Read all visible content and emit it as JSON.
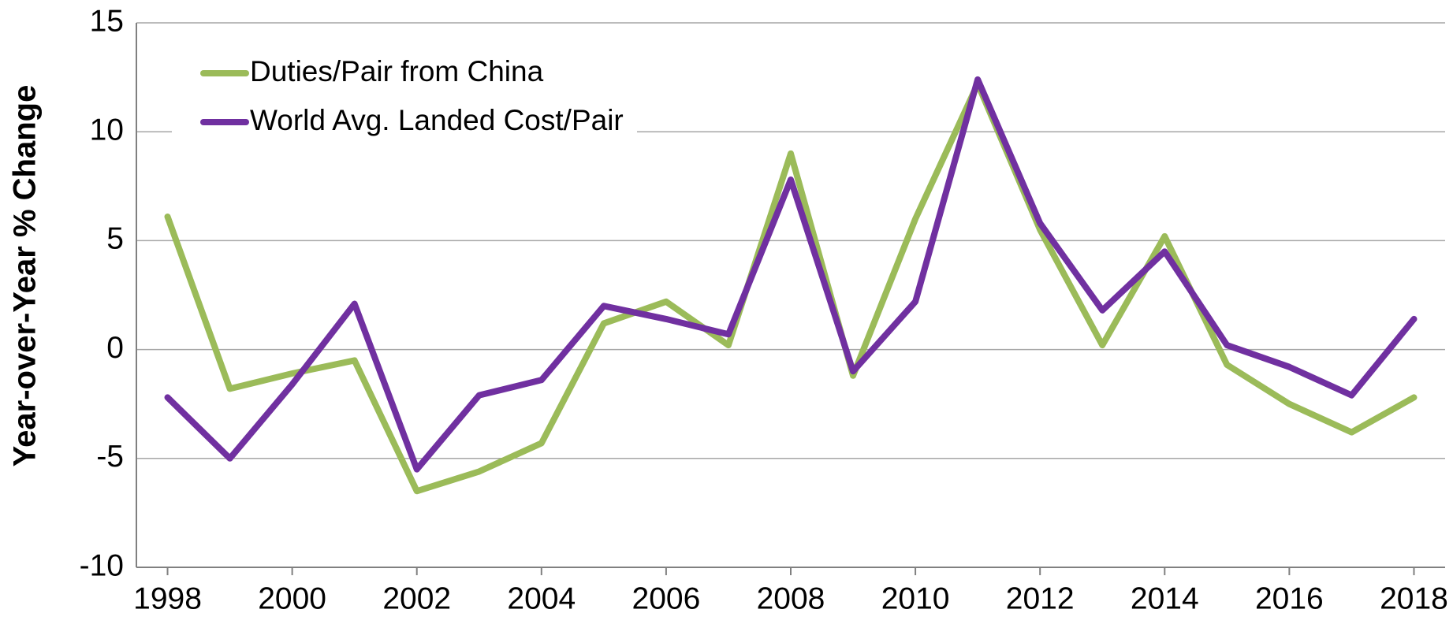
{
  "chart_data": {
    "type": "line",
    "y_label": "Year-over-Year % Change",
    "x": [
      1998,
      1999,
      2000,
      2001,
      2002,
      2003,
      2004,
      2005,
      2006,
      2007,
      2008,
      2009,
      2010,
      2011,
      2012,
      2013,
      2014,
      2015,
      2016,
      2017,
      2018
    ],
    "series": [
      {
        "name": "Duties/Pair from China",
        "color": "#9bbb59",
        "values": [
          6.1,
          -1.8,
          -1.1,
          -0.5,
          -6.5,
          -5.6,
          -4.3,
          1.2,
          2.2,
          0.2,
          9.0,
          -1.2,
          6.0,
          12.2,
          5.5,
          0.2,
          5.2,
          -0.7,
          -2.5,
          -3.8,
          -2.2
        ]
      },
      {
        "name": "World Avg. Landed Cost/Pair",
        "color": "#7030a0",
        "values": [
          -2.2,
          -5.0,
          -1.6,
          2.1,
          -5.5,
          -2.1,
          -1.4,
          2.0,
          1.4,
          0.7,
          7.8,
          -1.0,
          2.2,
          12.4,
          5.8,
          1.8,
          4.5,
          0.2,
          -0.8,
          -2.1,
          1.4
        ]
      }
    ],
    "xlim": [
      1997.5,
      2018.5
    ],
    "xticks": [
      1998,
      2000,
      2002,
      2004,
      2006,
      2008,
      2010,
      2012,
      2014,
      2016,
      2018
    ],
    "ylim": [
      -10,
      15
    ],
    "yticks": [
      -10,
      -5,
      0,
      5,
      10,
      15
    ],
    "grid": true,
    "legend": "upper left"
  }
}
